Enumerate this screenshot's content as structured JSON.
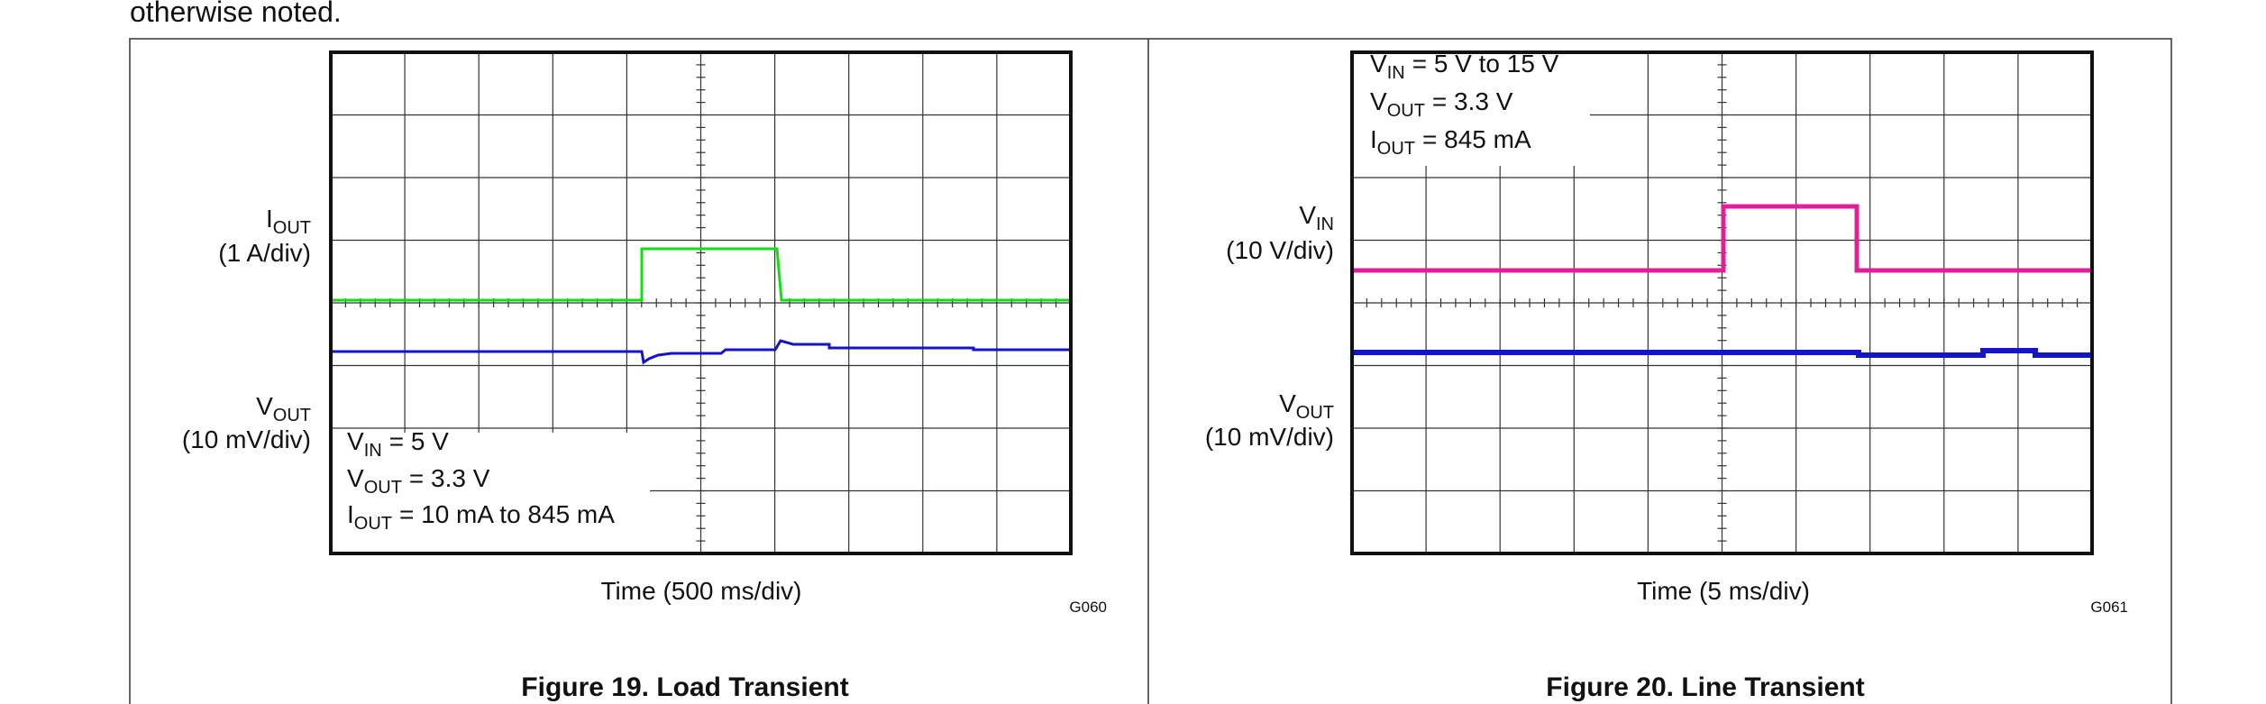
{
  "header": {
    "text": "otherwise noted."
  },
  "figures": [
    {
      "id": "G060",
      "x_label": "Time (500 ms/div)",
      "caption": "Figure 19. Load Transient",
      "channels": [
        {
          "symbol": "I",
          "sub": "OUT",
          "scale": "(1 A/div)"
        },
        {
          "symbol": "V",
          "sub": "OUT",
          "scale": "(10 mV/div)"
        }
      ],
      "conditions": [
        {
          "symbol": "V",
          "sub": "IN",
          "text": "= 5 V"
        },
        {
          "symbol": "V",
          "sub": "OUT",
          "text": "= 3.3 V"
        },
        {
          "symbol": "I",
          "sub": "OUT",
          "text": "= 10 mA to 845 mA"
        }
      ]
    },
    {
      "id": "G061",
      "x_label": "Time (5 ms/div)",
      "caption": "Figure 20. Line Transient",
      "channels": [
        {
          "symbol": "V",
          "sub": "IN",
          "scale": "(10 V/div)"
        },
        {
          "symbol": "V",
          "sub": "OUT",
          "scale": "(10 mV/div)"
        }
      ],
      "conditions": [
        {
          "symbol": "V",
          "sub": "IN",
          "text": "= 5 V to 15 V"
        },
        {
          "symbol": "V",
          "sub": "OUT",
          "text": "= 3.3 V"
        },
        {
          "symbol": "I",
          "sub": "OUT",
          "text": "= 845 mA"
        }
      ]
    }
  ]
}
